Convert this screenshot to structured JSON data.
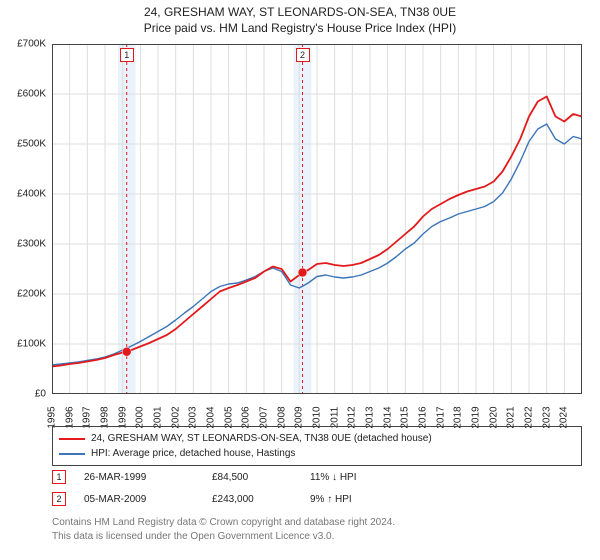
{
  "title": {
    "line1": "24, GRESHAM WAY, ST LEONARDS-ON-SEA, TN38 0UE",
    "line2": "Price paid vs. HM Land Registry's House Price Index (HPI)"
  },
  "chart": {
    "type": "line",
    "x_domain": [
      1995,
      2025
    ],
    "y_domain": [
      0,
      700000
    ],
    "y_ticks": [
      0,
      100000,
      200000,
      300000,
      400000,
      500000,
      600000,
      700000
    ],
    "y_tick_labels": [
      "£0",
      "£100K",
      "£200K",
      "£300K",
      "£400K",
      "£500K",
      "£600K",
      "£700K"
    ],
    "x_ticks": [
      1995,
      1996,
      1997,
      1998,
      1999,
      2000,
      2001,
      2002,
      2003,
      2004,
      2005,
      2006,
      2007,
      2008,
      2009,
      2010,
      2011,
      2012,
      2013,
      2014,
      2015,
      2016,
      2017,
      2018,
      2019,
      2020,
      2021,
      2022,
      2023,
      2024
    ],
    "x_tick_labels": [
      "1995",
      "1996",
      "1997",
      "1998",
      "1999",
      "2000",
      "2001",
      "2002",
      "2003",
      "2004",
      "2005",
      "2006",
      "2007",
      "2008",
      "2009",
      "2010",
      "2011",
      "2012",
      "2013",
      "2014",
      "2015",
      "2016",
      "2017",
      "2018",
      "2019",
      "2020",
      "2021",
      "2022",
      "2023",
      "2024"
    ],
    "background_color": "#ffffff",
    "grid_color": "#dddddd",
    "axis_color": "#444444",
    "label_fontsize": 10,
    "series": [
      {
        "name": "24, GRESHAM WAY, ST LEONARDS-ON-SEA, TN38 0UE (detached house)",
        "color": "#e31a1c",
        "line_width": 1.8,
        "data": [
          [
            1995.0,
            55000
          ],
          [
            1995.5,
            57000
          ],
          [
            1996.0,
            60000
          ],
          [
            1996.5,
            62000
          ],
          [
            1997.0,
            65000
          ],
          [
            1997.5,
            68000
          ],
          [
            1998.0,
            72000
          ],
          [
            1998.5,
            78000
          ],
          [
            1999.0,
            83000
          ],
          [
            1999.23,
            84500
          ],
          [
            1999.5,
            88000
          ],
          [
            2000.0,
            95000
          ],
          [
            2000.5,
            102000
          ],
          [
            2001.0,
            110000
          ],
          [
            2001.5,
            118000
          ],
          [
            2002.0,
            130000
          ],
          [
            2002.5,
            145000
          ],
          [
            2003.0,
            160000
          ],
          [
            2003.5,
            175000
          ],
          [
            2004.0,
            190000
          ],
          [
            2004.5,
            205000
          ],
          [
            2005.0,
            212000
          ],
          [
            2005.5,
            218000
          ],
          [
            2006.0,
            225000
          ],
          [
            2006.5,
            232000
          ],
          [
            2007.0,
            245000
          ],
          [
            2007.5,
            255000
          ],
          [
            2008.0,
            250000
          ],
          [
            2008.5,
            225000
          ],
          [
            2009.0,
            238000
          ],
          [
            2009.18,
            243000
          ],
          [
            2009.5,
            248000
          ],
          [
            2010.0,
            260000
          ],
          [
            2010.5,
            262000
          ],
          [
            2011.0,
            258000
          ],
          [
            2011.5,
            256000
          ],
          [
            2012.0,
            258000
          ],
          [
            2012.5,
            262000
          ],
          [
            2013.0,
            270000
          ],
          [
            2013.5,
            278000
          ],
          [
            2014.0,
            290000
          ],
          [
            2014.5,
            305000
          ],
          [
            2015.0,
            320000
          ],
          [
            2015.5,
            335000
          ],
          [
            2016.0,
            355000
          ],
          [
            2016.5,
            370000
          ],
          [
            2017.0,
            380000
          ],
          [
            2017.5,
            390000
          ],
          [
            2018.0,
            398000
          ],
          [
            2018.5,
            405000
          ],
          [
            2019.0,
            410000
          ],
          [
            2019.5,
            415000
          ],
          [
            2020.0,
            425000
          ],
          [
            2020.5,
            445000
          ],
          [
            2021.0,
            475000
          ],
          [
            2021.5,
            510000
          ],
          [
            2022.0,
            555000
          ],
          [
            2022.5,
            585000
          ],
          [
            2023.0,
            595000
          ],
          [
            2023.5,
            555000
          ],
          [
            2024.0,
            545000
          ],
          [
            2024.5,
            560000
          ],
          [
            2025.0,
            555000
          ]
        ]
      },
      {
        "name": "HPI: Average price, detached house, Hastings",
        "color": "#3b74b8",
        "line_width": 1.4,
        "data": [
          [
            1995.0,
            58000
          ],
          [
            1995.5,
            60000
          ],
          [
            1996.0,
            62000
          ],
          [
            1996.5,
            64000
          ],
          [
            1997.0,
            67000
          ],
          [
            1997.5,
            70000
          ],
          [
            1998.0,
            74000
          ],
          [
            1998.5,
            80000
          ],
          [
            1999.0,
            88000
          ],
          [
            1999.5,
            96000
          ],
          [
            2000.0,
            105000
          ],
          [
            2000.5,
            115000
          ],
          [
            2001.0,
            125000
          ],
          [
            2001.5,
            135000
          ],
          [
            2002.0,
            148000
          ],
          [
            2002.5,
            162000
          ],
          [
            2003.0,
            175000
          ],
          [
            2003.5,
            190000
          ],
          [
            2004.0,
            205000
          ],
          [
            2004.5,
            215000
          ],
          [
            2005.0,
            220000
          ],
          [
            2005.5,
            222000
          ],
          [
            2006.0,
            228000
          ],
          [
            2006.5,
            235000
          ],
          [
            2007.0,
            245000
          ],
          [
            2007.5,
            252000
          ],
          [
            2008.0,
            245000
          ],
          [
            2008.5,
            218000
          ],
          [
            2009.0,
            212000
          ],
          [
            2009.5,
            222000
          ],
          [
            2010.0,
            235000
          ],
          [
            2010.5,
            238000
          ],
          [
            2011.0,
            234000
          ],
          [
            2011.5,
            232000
          ],
          [
            2012.0,
            234000
          ],
          [
            2012.5,
            238000
          ],
          [
            2013.0,
            245000
          ],
          [
            2013.5,
            252000
          ],
          [
            2014.0,
            262000
          ],
          [
            2014.5,
            275000
          ],
          [
            2015.0,
            290000
          ],
          [
            2015.5,
            302000
          ],
          [
            2016.0,
            320000
          ],
          [
            2016.5,
            335000
          ],
          [
            2017.0,
            345000
          ],
          [
            2017.5,
            352000
          ],
          [
            2018.0,
            360000
          ],
          [
            2018.5,
            365000
          ],
          [
            2019.0,
            370000
          ],
          [
            2019.5,
            375000
          ],
          [
            2020.0,
            385000
          ],
          [
            2020.5,
            402000
          ],
          [
            2021.0,
            430000
          ],
          [
            2021.5,
            465000
          ],
          [
            2022.0,
            505000
          ],
          [
            2022.5,
            530000
          ],
          [
            2023.0,
            540000
          ],
          [
            2023.5,
            510000
          ],
          [
            2024.0,
            500000
          ],
          [
            2024.5,
            515000
          ],
          [
            2025.0,
            510000
          ]
        ]
      }
    ],
    "sale_points": [
      {
        "id": "1",
        "x": 1999.23,
        "y": 84500
      },
      {
        "id": "2",
        "x": 2009.18,
        "y": 243000
      }
    ],
    "sale_band_color": "#eaf2fb",
    "sale_guide_color": "#e31a1c",
    "sale_guide_dash": "3,3",
    "sale_point_color": "#e31a1c",
    "sale_point_radius": 4.5
  },
  "legend": {
    "items": [
      {
        "color": "#e31a1c",
        "label": "24, GRESHAM WAY, ST LEONARDS-ON-SEA, TN38 0UE (detached house)"
      },
      {
        "color": "#3b74b8",
        "label": "HPI: Average price, detached house, Hastings"
      }
    ]
  },
  "sales": [
    {
      "id": "1",
      "date": "26-MAR-1999",
      "price": "£84,500",
      "diff": "11% ↓ HPI"
    },
    {
      "id": "2",
      "date": "05-MAR-2009",
      "price": "£243,000",
      "diff": "9% ↑ HPI"
    }
  ],
  "footer": {
    "line1": "Contains HM Land Registry data © Crown copyright and database right 2024.",
    "line2": "This data is licensed under the Open Government Licence v3.0."
  }
}
